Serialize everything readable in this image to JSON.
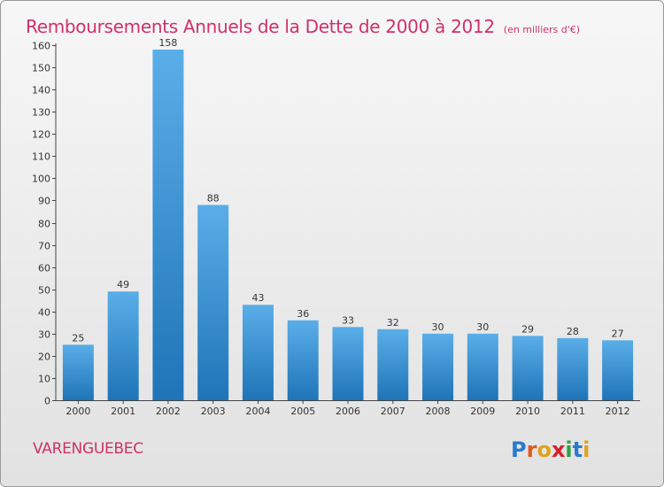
{
  "title": "Remboursements Annuels de la Dette de 2000 à 2012",
  "unit_label": "(en milliers d'€)",
  "commune": "VARENGUEBEC",
  "logo_text": "Proxiti",
  "colors": {
    "title": "#d0306a",
    "bar_light": "#5aaee8",
    "bar_dark": "#1f74b8"
  },
  "chart_data": {
    "type": "bar",
    "title": "Remboursements Annuels de la Dette de 2000 à 2012",
    "xlabel": "",
    "ylabel": "",
    "categories": [
      "2000",
      "2001",
      "2002",
      "2003",
      "2004",
      "2005",
      "2006",
      "2007",
      "2008",
      "2009",
      "2010",
      "2011",
      "2012"
    ],
    "values": [
      25,
      49,
      158,
      88,
      43,
      36,
      33,
      32,
      30,
      30,
      29,
      28,
      27
    ],
    "ylim": [
      0,
      160
    ],
    "yticks": [
      0,
      10,
      20,
      30,
      40,
      50,
      60,
      70,
      80,
      90,
      100,
      110,
      120,
      130,
      140,
      150,
      160
    ],
    "grid": false,
    "data_labels": true
  }
}
